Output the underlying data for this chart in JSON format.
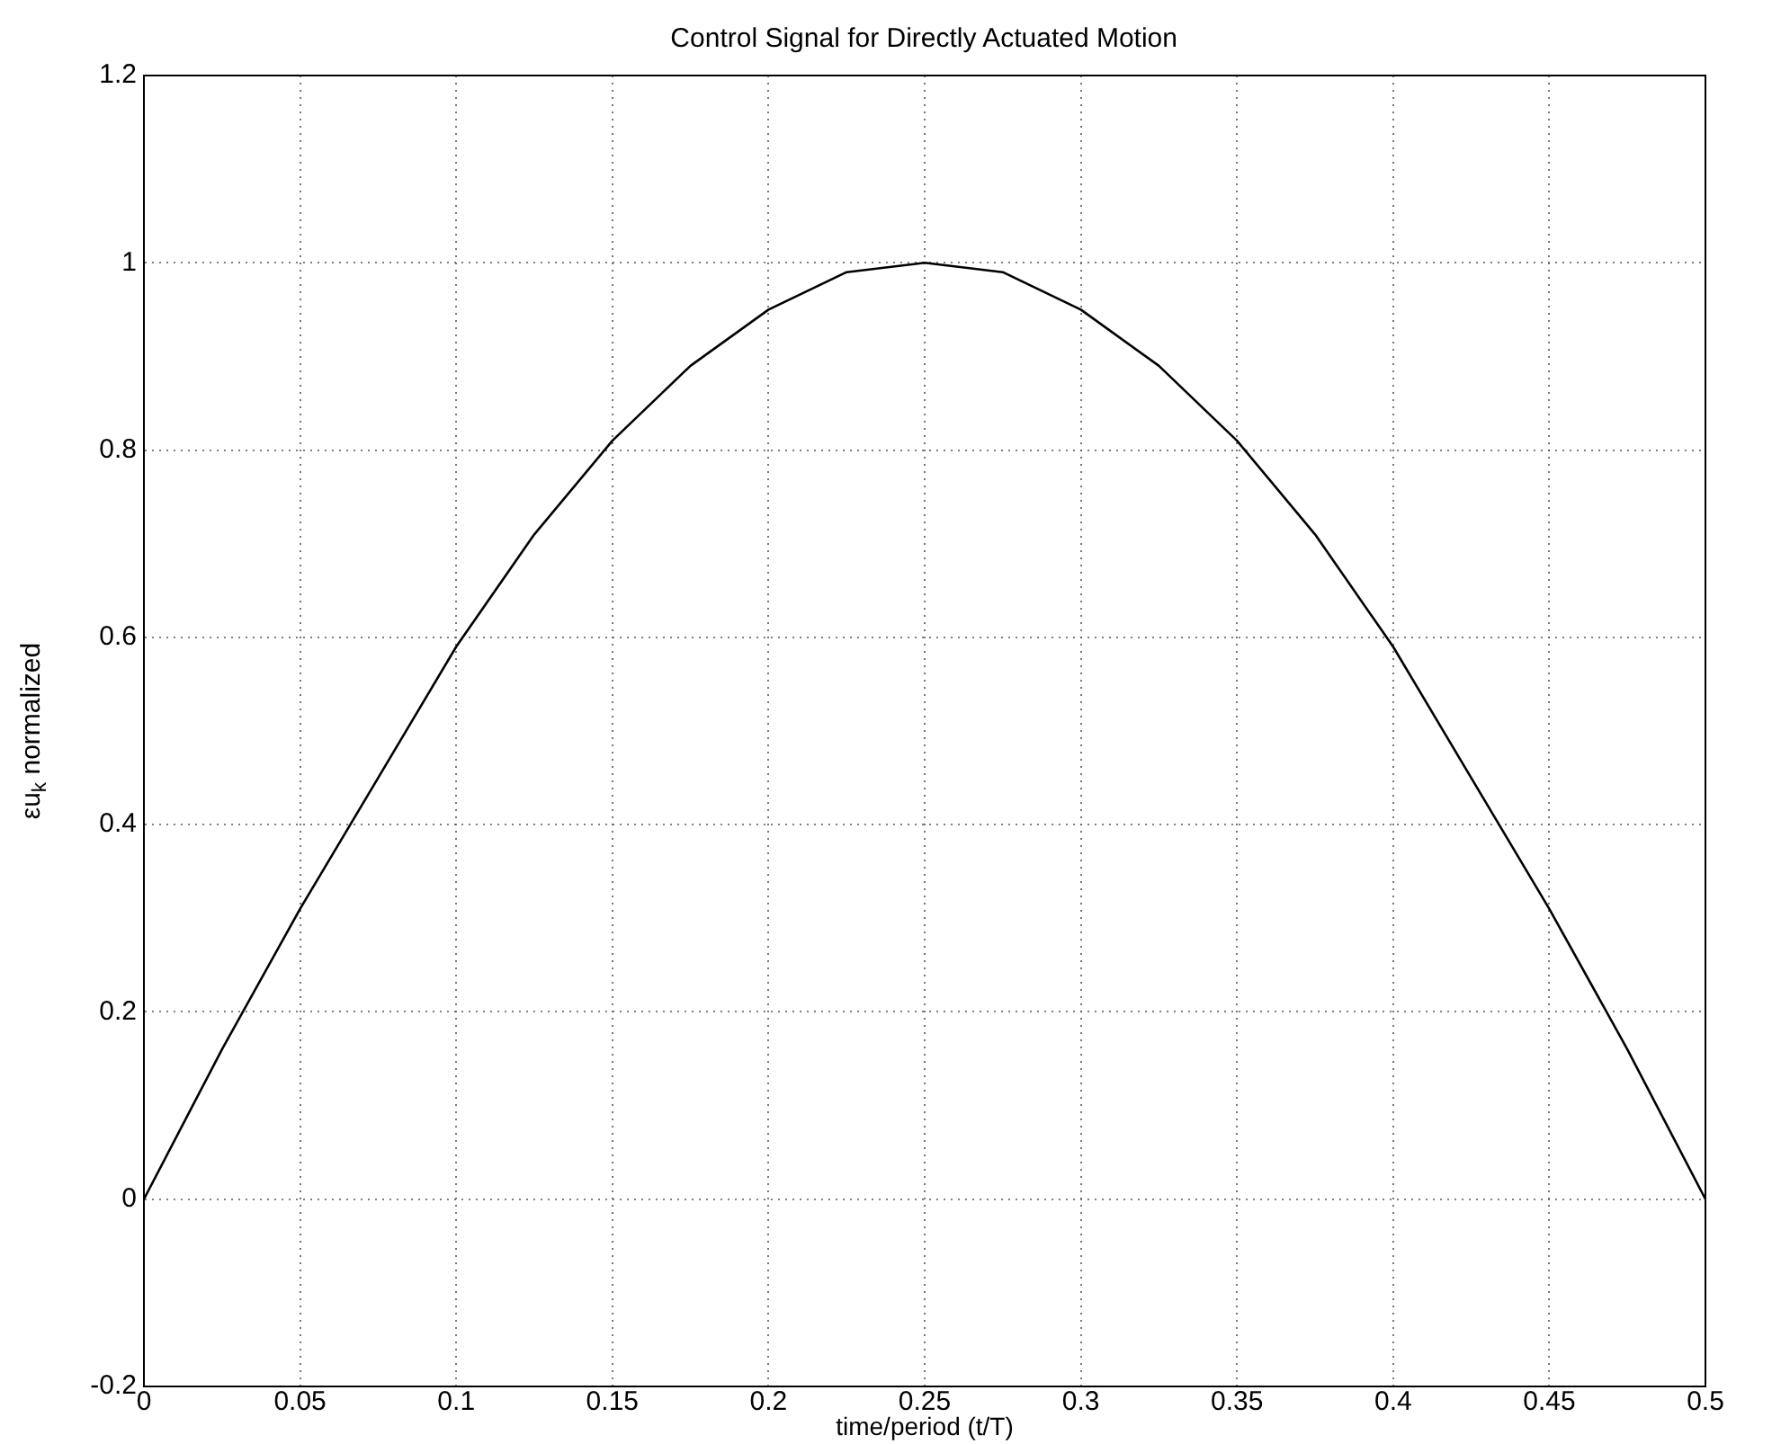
{
  "chart_data": {
    "type": "line",
    "title": "Control Signal for Directly Actuated Motion",
    "xlabel": "time/period (t/T)",
    "ylabel": "εu$_{k}$ normalized",
    "x": [
      0,
      0.025,
      0.05,
      0.075,
      0.1,
      0.125,
      0.15,
      0.175,
      0.2,
      0.225,
      0.25,
      0.275,
      0.3,
      0.325,
      0.35,
      0.375,
      0.4,
      0.425,
      0.45,
      0.475,
      0.5
    ],
    "series": [
      {
        "color": "#000000",
        "values": [
          0,
          0.16,
          0.31,
          0.45,
          0.59,
          0.71,
          0.81,
          0.89,
          0.95,
          0.99,
          1.0,
          0.99,
          0.95,
          0.89,
          0.81,
          0.71,
          0.59,
          0.45,
          0.31,
          0.16,
          0
        ]
      }
    ],
    "xlim": [
      0,
      0.5
    ],
    "xticks": [
      0,
      0.05,
      0.1,
      0.15,
      0.2,
      0.25,
      0.3,
      0.35,
      0.4,
      0.45,
      0.5
    ],
    "ylim": [
      -0.2,
      1.2
    ],
    "yticks": [
      -0.2,
      0,
      0.2,
      0.4,
      0.6,
      0.8,
      1,
      1.2
    ],
    "grid": true,
    "marker": "none",
    "line_style": "solid",
    "legend": false
  }
}
